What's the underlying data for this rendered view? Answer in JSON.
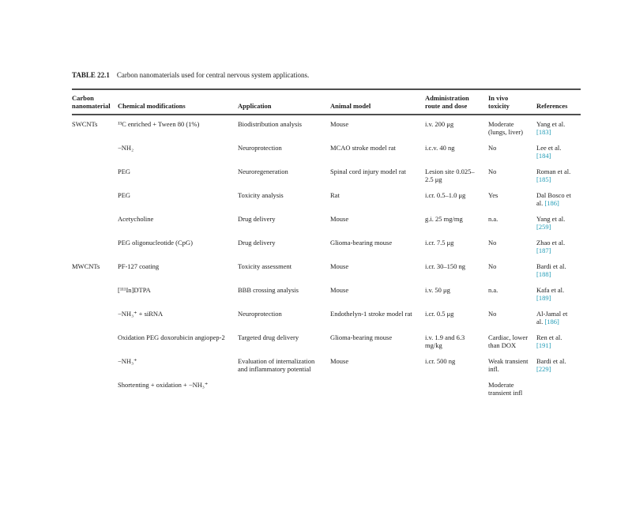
{
  "title": {
    "label": "TABLE 22.1",
    "caption": "Carbon nanomaterials used for central nervous system applications."
  },
  "table": {
    "link_color": "#1e9ab5",
    "columns": [
      "Carbon nanomaterial",
      "Chemical modifications",
      "Application",
      "Animal model",
      "Administration route and dose",
      "In vivo toxicity",
      "References"
    ],
    "rows": [
      {
        "material": "SWCNTs",
        "modification": "¹³C enriched + Tween 80 (1%)",
        "application": "Biodistribution analysis",
        "animal": "Mouse",
        "dose": "i.v. 200 μg",
        "toxicity": "Moderate (lungs, liver)",
        "ref_name": "Yang et al.",
        "ref_num": "[183]"
      },
      {
        "material": "",
        "modification": "−NH₂",
        "application": "Neuroprotection",
        "animal": "MCAO stroke model rat",
        "dose": "i.c.v. 40 ng",
        "toxicity": "No",
        "ref_name": "Lee et al.",
        "ref_num": "[184]"
      },
      {
        "material": "",
        "modification": "PEG",
        "application": "Neuroregeneration",
        "animal": "Spinal cord injury model rat",
        "dose": "Lesion site 0.025–2.5 μg",
        "toxicity": "No",
        "ref_name": "Roman et al.",
        "ref_num": "[185]"
      },
      {
        "material": "",
        "modification": "PEG",
        "application": "Toxicity analysis",
        "animal": "Rat",
        "dose": "i.cr. 0.5–1.0 μg",
        "toxicity": "Yes",
        "ref_name": "Dal Bosco et al.",
        "ref_num": "[186]"
      },
      {
        "material": "",
        "modification": "Acetycholine",
        "application": "Drug delivery",
        "animal": "Mouse",
        "dose": "g.i. 25 mg/mg",
        "toxicity": "n.a.",
        "ref_name": "Yang et al.",
        "ref_num": "[259]"
      },
      {
        "material": "",
        "modification": "PEG oligonucleotide (CpG)",
        "application": "Drug delivery",
        "animal": "Glioma-bearing mouse",
        "dose": "i.cr. 7.5 μg",
        "toxicity": "No",
        "ref_name": "Zhao et al.",
        "ref_num": "[187]"
      },
      {
        "material": "MWCNTs",
        "modification": "PF-127 coating",
        "application": "Toxicity assessment",
        "animal": "Mouse",
        "dose": "i.cr. 30–150 ng",
        "toxicity": "No",
        "ref_name": "Bardi et al.",
        "ref_num": "[188]"
      },
      {
        "material": "",
        "modification": "[¹¹¹In]DTPA",
        "application": "BBB crossing analysis",
        "animal": "Mouse",
        "dose": "i.v. 50 μg",
        "toxicity": "n.a.",
        "ref_name": "Kafa et al.",
        "ref_num": "[189]"
      },
      {
        "material": "",
        "modification": "−NH₃⁺ + siRNA",
        "application": "Neuroprotection",
        "animal": "Endothelyn-1 stroke model rat",
        "dose": "i.cr. 0.5 μg",
        "toxicity": "No",
        "ref_name": "Al-Jamal et al.",
        "ref_num": "[186]"
      },
      {
        "material": "",
        "modification": "Oxidation PEG doxorubicin angiopep-2",
        "application": "Targeted drug delivery",
        "animal": "Glioma-bearing mouse",
        "dose": "i.v. 1.9 and 6.3 mg/kg",
        "toxicity": "Cardiac, lower than DOX",
        "ref_name": "Ren et al.",
        "ref_num": "[191]"
      },
      {
        "material": "",
        "modification": "−NH₃⁺",
        "application": "Evaluation of internalization and inflammatory potential",
        "animal": "Mouse",
        "dose": "i.cr. 500 ng",
        "toxicity": "Weak transient infl.",
        "ref_name": "Bardi et al.",
        "ref_num": "[229]"
      },
      {
        "material": "",
        "modification": "Shortenting + oxidation + −NH₃⁺",
        "application": "",
        "animal": "",
        "dose": "",
        "toxicity": "Moderate transient infl",
        "ref_name": "",
        "ref_num": ""
      }
    ]
  }
}
